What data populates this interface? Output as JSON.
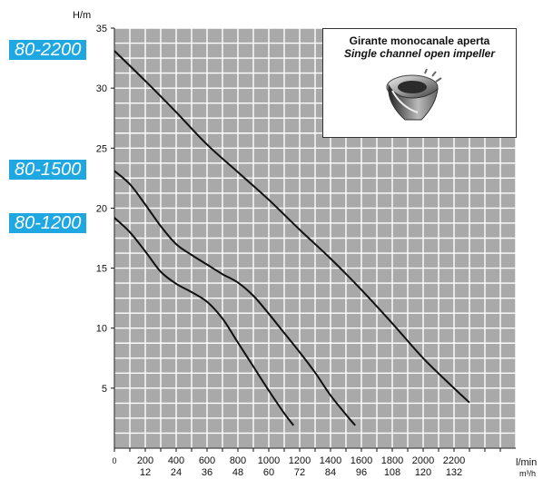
{
  "chart_data": {
    "type": "line",
    "y_unit": "H/m",
    "x_units": [
      "l/min",
      "m³/h"
    ],
    "x_ticks_lmin": [
      0,
      200,
      400,
      600,
      800,
      1000,
      1200,
      1400,
      1600,
      1800,
      2000,
      2200
    ],
    "x_ticks_m3h": [
      12,
      24,
      36,
      48,
      60,
      72,
      84,
      96,
      108,
      120,
      132
    ],
    "y_ticks": [
      5,
      10,
      15,
      20,
      25,
      30,
      35
    ],
    "xlim": [
      0,
      2600
    ],
    "ylim": [
      0,
      35
    ],
    "grid": true,
    "series": [
      {
        "name": "80-2200",
        "x": [
          0,
          200,
          400,
          600,
          800,
          1000,
          1200,
          1400,
          1600,
          1800,
          2000,
          2200,
          2300
        ],
        "y": [
          33.1,
          30.6,
          28.0,
          25.3,
          23.0,
          20.7,
          18.2,
          15.8,
          13.2,
          10.4,
          7.5,
          5.0,
          3.8
        ]
      },
      {
        "name": "80-1500",
        "x": [
          0,
          100,
          200,
          300,
          400,
          500,
          600,
          700,
          800,
          900,
          1000,
          1100,
          1200,
          1300,
          1400,
          1500,
          1560
        ],
        "y": [
          23.1,
          22.0,
          20.3,
          18.5,
          17.0,
          16.1,
          15.3,
          14.5,
          13.8,
          12.7,
          11.2,
          9.6,
          8.0,
          6.3,
          4.4,
          2.8,
          1.9
        ]
      },
      {
        "name": "80-1200",
        "x": [
          0,
          100,
          200,
          300,
          400,
          500,
          600,
          700,
          800,
          900,
          1000,
          1100,
          1160
        ],
        "y": [
          19.2,
          18.0,
          16.4,
          14.7,
          13.7,
          13.0,
          12.2,
          10.8,
          8.8,
          6.8,
          4.8,
          2.9,
          1.9
        ]
      }
    ]
  },
  "labels": {
    "model_1": "80-2200",
    "model_2": "80-1500",
    "model_3": "80-1200"
  },
  "inset": {
    "title_it": "Girante monocanale aperta",
    "title_en": "Single channel open impeller"
  }
}
